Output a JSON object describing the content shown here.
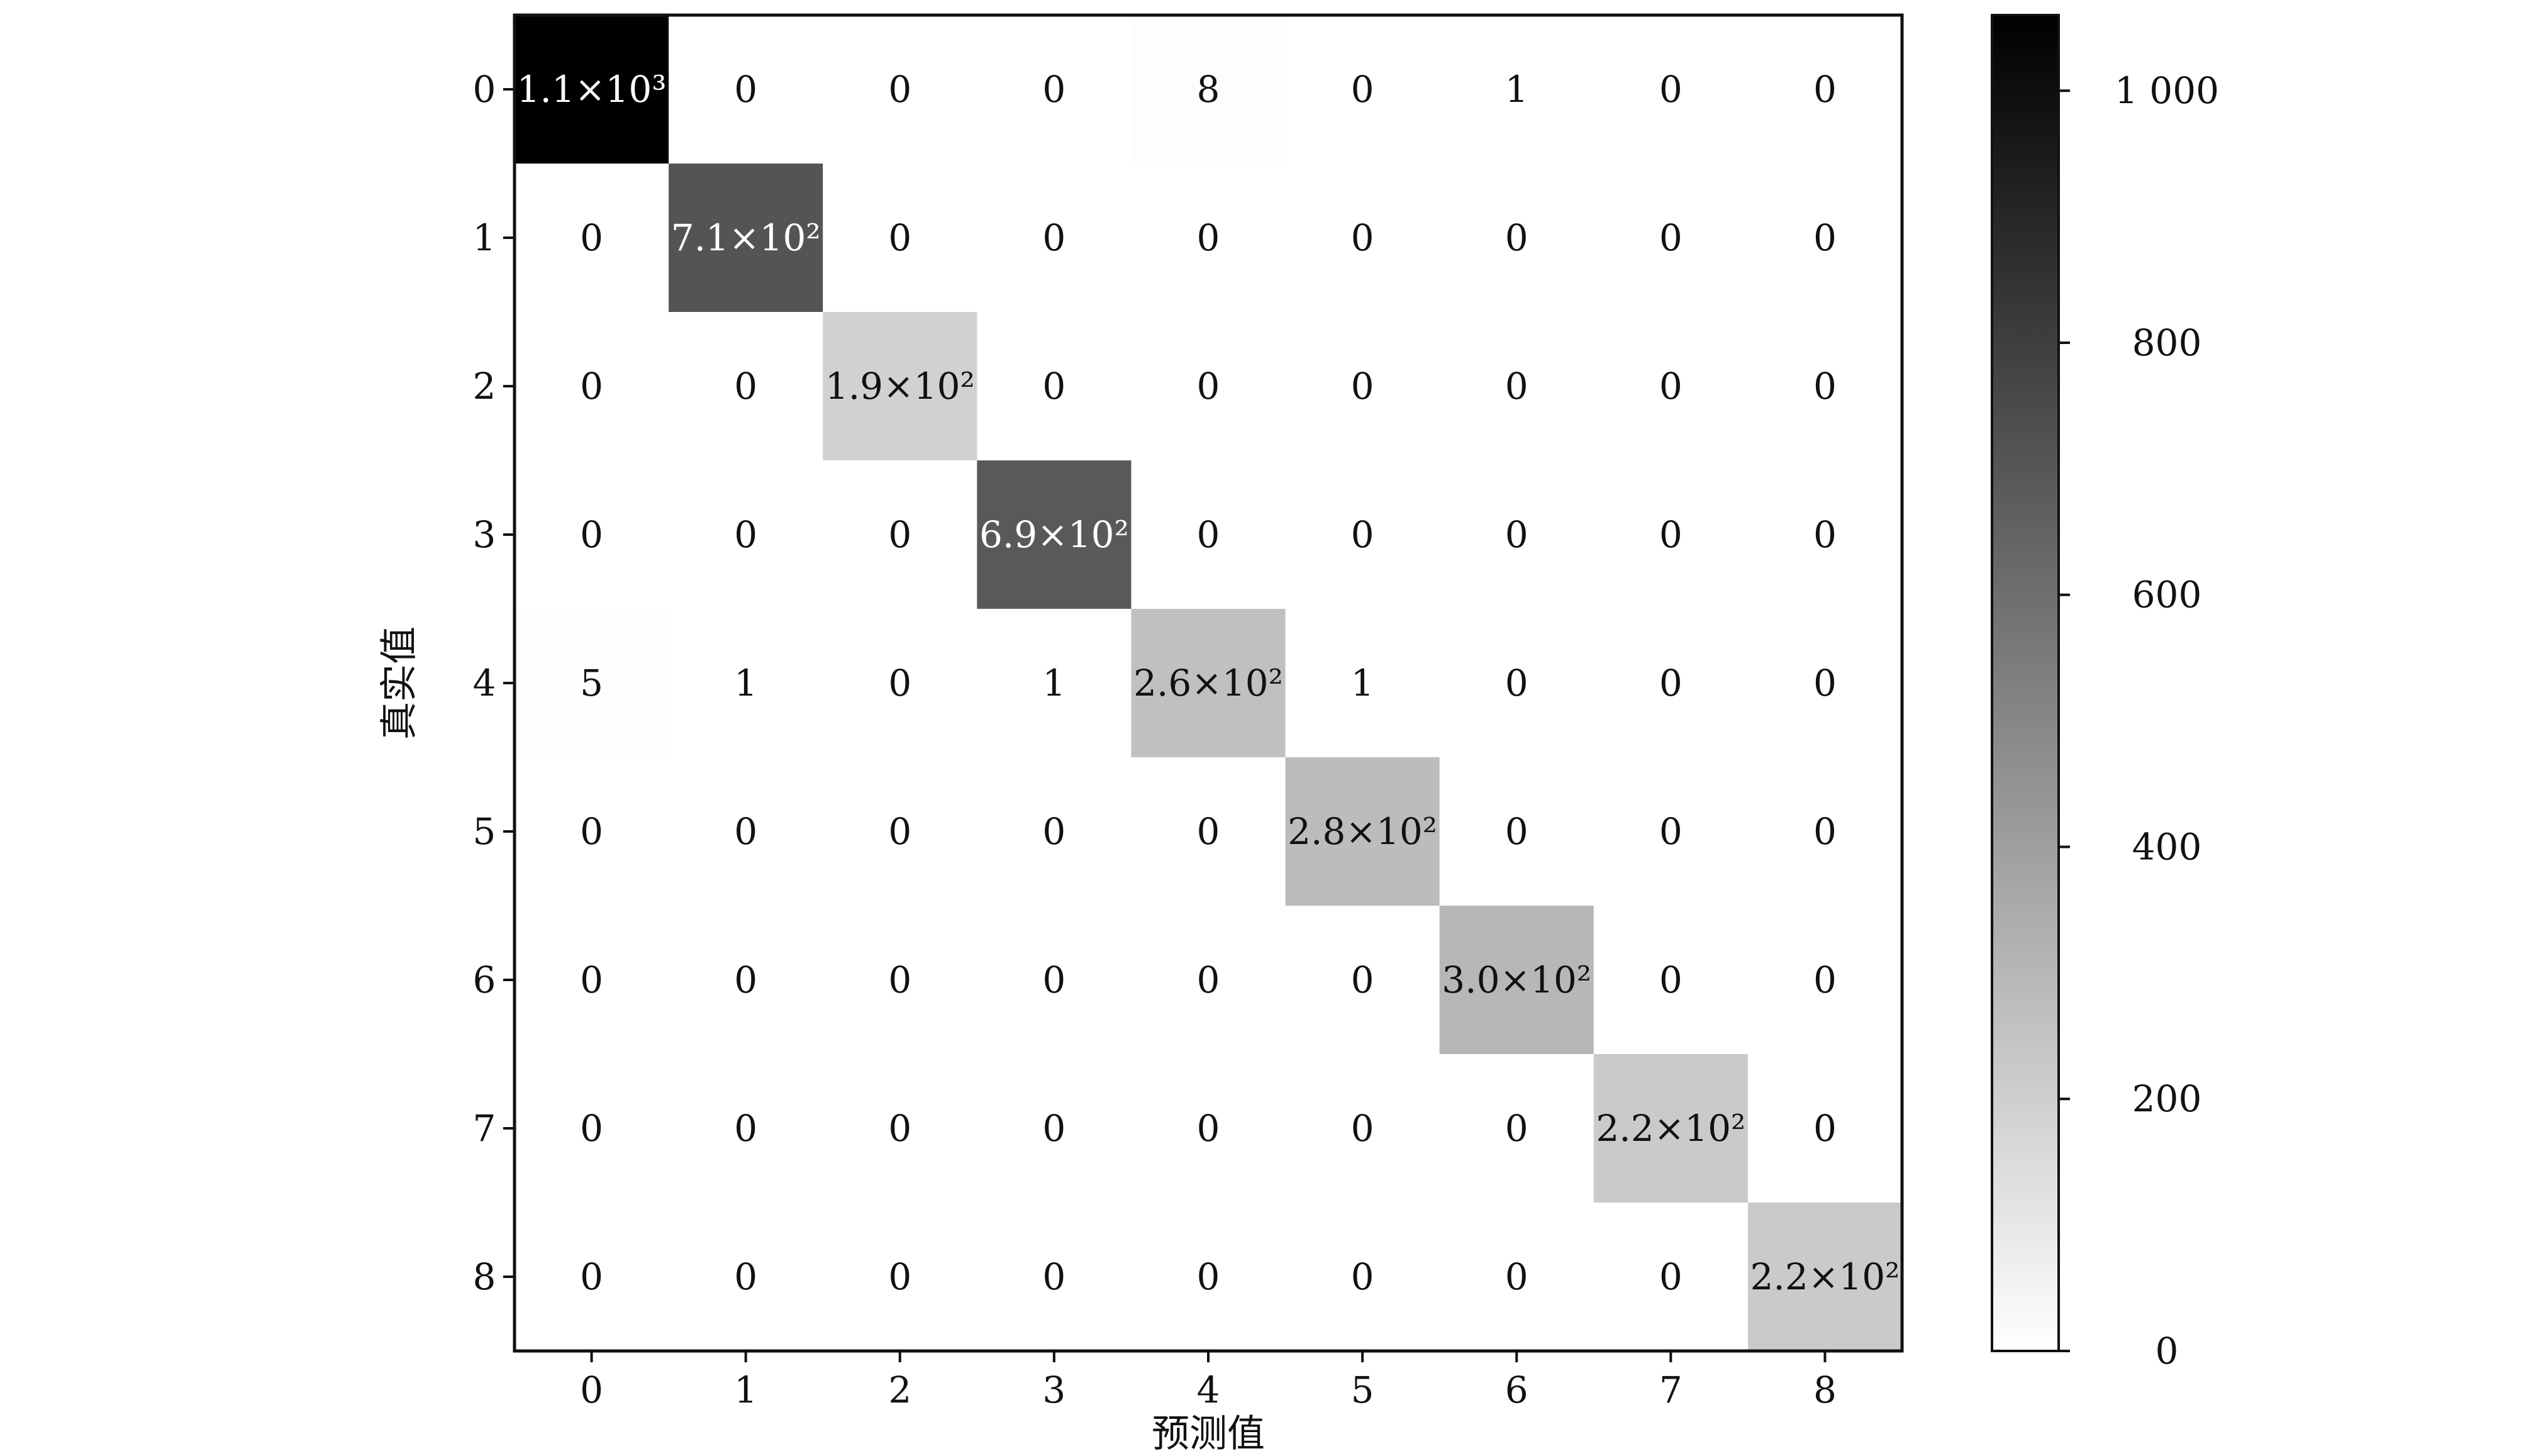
{
  "chart_data": {
    "type": "heatmap",
    "title": "",
    "xlabel": "预测值",
    "ylabel": "真实值",
    "x_categories": [
      "0",
      "1",
      "2",
      "3",
      "4",
      "5",
      "6",
      "7",
      "8"
    ],
    "y_categories": [
      "0",
      "1",
      "2",
      "3",
      "4",
      "5",
      "6",
      "7",
      "8"
    ],
    "values": [
      [
        1100,
        0,
        0,
        0,
        8,
        0,
        1,
        0,
        0
      ],
      [
        0,
        710,
        0,
        0,
        0,
        0,
        0,
        0,
        0
      ],
      [
        0,
        0,
        190,
        0,
        0,
        0,
        0,
        0,
        0
      ],
      [
        0,
        0,
        0,
        690,
        0,
        0,
        0,
        0,
        0
      ],
      [
        5,
        1,
        0,
        1,
        260,
        1,
        0,
        0,
        0
      ],
      [
        0,
        0,
        0,
        0,
        0,
        280,
        0,
        0,
        0
      ],
      [
        0,
        0,
        0,
        0,
        0,
        0,
        300,
        0,
        0
      ],
      [
        0,
        0,
        0,
        0,
        0,
        0,
        0,
        220,
        0
      ],
      [
        0,
        0,
        0,
        0,
        0,
        0,
        0,
        0,
        220
      ]
    ],
    "cell_labels": [
      [
        "1.1×10³",
        "0",
        "0",
        "0",
        "8",
        "0",
        "1",
        "0",
        "0"
      ],
      [
        "0",
        "7.1×10²",
        "0",
        "0",
        "0",
        "0",
        "0",
        "0",
        "0"
      ],
      [
        "0",
        "0",
        "1.9×10²",
        "0",
        "0",
        "0",
        "0",
        "0",
        "0"
      ],
      [
        "0",
        "0",
        "0",
        "6.9×10²",
        "0",
        "0",
        "0",
        "0",
        "0"
      ],
      [
        "5",
        "1",
        "0",
        "1",
        "2.6×10²",
        "1",
        "0",
        "0",
        "0"
      ],
      [
        "0",
        "0",
        "0",
        "0",
        "0",
        "2.8×10²",
        "0",
        "0",
        "0"
      ],
      [
        "0",
        "0",
        "0",
        "0",
        "0",
        "0",
        "3.0×10²",
        "0",
        "0"
      ],
      [
        "0",
        "0",
        "0",
        "0",
        "0",
        "0",
        "0",
        "2.2×10²",
        "0"
      ],
      [
        "0",
        "0",
        "0",
        "0",
        "0",
        "0",
        "0",
        "0",
        "2.2×10²"
      ]
    ],
    "colorbar": {
      "range": [
        0,
        1060
      ],
      "ticks": [
        0,
        200,
        400,
        600,
        800,
        1000
      ],
      "tick_labels": [
        "0",
        "200",
        "400",
        "600",
        "800",
        "1 000"
      ],
      "colormap": "Greys"
    },
    "grid": false,
    "legend": "none"
  }
}
